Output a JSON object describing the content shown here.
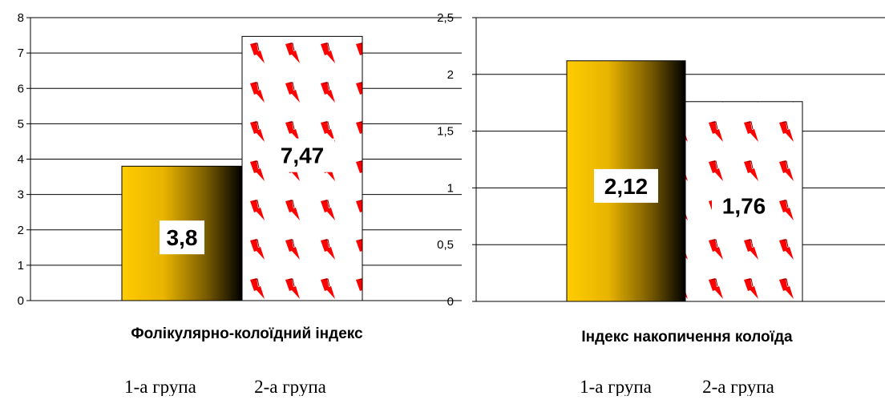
{
  "chart_data": [
    {
      "type": "bar",
      "title": "Фолікулярно-колоїдний індекс",
      "categories": [
        "1-а група",
        "2-а група"
      ],
      "values": [
        3.8,
        7.47
      ],
      "value_labels": [
        "3,8",
        "7,47"
      ],
      "ylim": [
        0,
        8
      ],
      "yticks": [
        0,
        1,
        2,
        3,
        4,
        5,
        6,
        7,
        8
      ],
      "ytick_labels": [
        "0",
        "1",
        "2",
        "3",
        "4",
        "5",
        "6",
        "7",
        "8"
      ],
      "grid": true,
      "bar_styles": [
        "gradient-gold",
        "red-bolt-pattern"
      ]
    },
    {
      "type": "bar",
      "title": "Індекс накопичення колоїда",
      "categories": [
        "1-а група",
        "2-а група"
      ],
      "values": [
        2.12,
        1.76
      ],
      "value_labels": [
        "2,12",
        "1,76"
      ],
      "ylim": [
        0,
        2.5
      ],
      "yticks": [
        0,
        0.5,
        1,
        1.5,
        2,
        2.5
      ],
      "ytick_labels": [
        "0",
        "0,5",
        "1",
        "1,5",
        "2",
        "2,5"
      ],
      "grid": true,
      "bar_styles": [
        "gradient-gold",
        "red-bolt-pattern"
      ]
    }
  ],
  "legends": [
    {
      "group1_label": "1-а група",
      "group2_label": "2-а група"
    },
    {
      "group1_label": "1-а група",
      "group2_label": "2-а група"
    }
  ],
  "colors": {
    "gold": "#f5c400",
    "bolt": "#ff0000",
    "grid": "#000000"
  }
}
